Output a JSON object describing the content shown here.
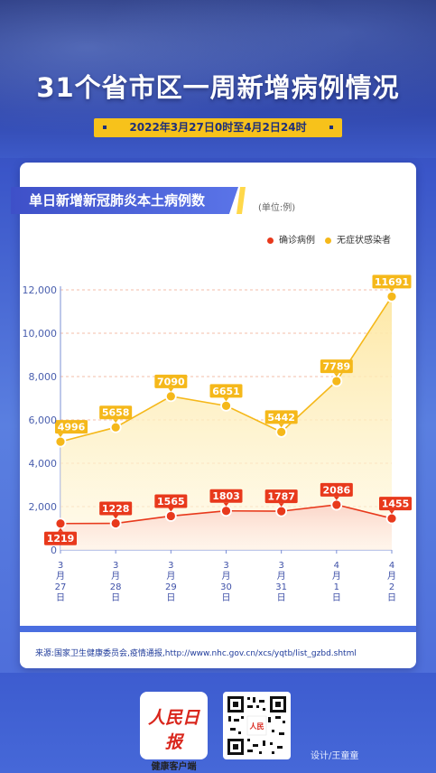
{
  "header": {
    "title": "31个省市区一周新增病例情况",
    "date_range": "2022年3月27日0时至4月2日24时"
  },
  "chart_title": "单日新增新冠肺炎本土病例数",
  "unit_label": "(单位:例)",
  "legend": {
    "confirmed": "确诊病例",
    "asymptomatic": "无症状感染者"
  },
  "source": "来源:国家卫生健康委员会,疫情通报,http://www.nhc.gov.cn/xcs/yqtb/list_gzbd.shtml",
  "footer": {
    "logo_main": "人民日报",
    "logo_sub": "健康客户端",
    "designer": "设计/王童童"
  },
  "colors": {
    "confirmed": "#e8391c",
    "asymptomatic": "#f5b81a"
  },
  "chart_data": {
    "type": "line",
    "categories": [
      [
        "3",
        "月",
        "27",
        "日"
      ],
      [
        "3",
        "月",
        "28",
        "日"
      ],
      [
        "3",
        "月",
        "29",
        "日"
      ],
      [
        "3",
        "月",
        "30",
        "日"
      ],
      [
        "3",
        "月",
        "31",
        "日"
      ],
      [
        "4",
        "月",
        "1",
        "日"
      ],
      [
        "4",
        "月",
        "2",
        "日"
      ]
    ],
    "series": [
      {
        "name": "确诊病例",
        "values": [
          1219,
          1228,
          1565,
          1803,
          1787,
          2086,
          1455
        ]
      },
      {
        "name": "无症状感染者",
        "values": [
          4996,
          5658,
          7090,
          6651,
          5442,
          7789,
          11691
        ]
      }
    ],
    "y_ticks": [
      "0",
      "2,000",
      "4,000",
      "6,000",
      "8,000",
      "10,000",
      "12,000"
    ],
    "ylim": [
      0,
      12000
    ],
    "grid": true
  }
}
